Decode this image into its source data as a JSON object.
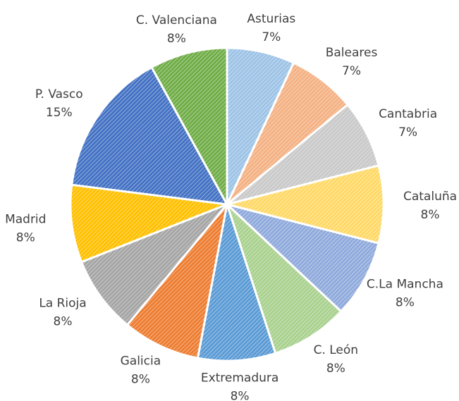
{
  "chart_data": {
    "type": "pie",
    "categories": [
      "Asturias",
      "Baleares",
      "Cantabria",
      "Cataluña",
      "C.La Mancha",
      "C. León",
      "Extremadura",
      "Galicia",
      "La Rioja",
      "Madrid",
      "P. Vasco",
      "C. Valenciana"
    ],
    "values": [
      7,
      7,
      7,
      8,
      8,
      8,
      8,
      8,
      8,
      8,
      15,
      8
    ],
    "value_labels": [
      "7%",
      "7%",
      "7%",
      "8%",
      "8%",
      "8%",
      "8%",
      "8%",
      "8%",
      "8%",
      "15%",
      "8%"
    ],
    "colors": [
      "#9dc3e6",
      "#f4b183",
      "#c9c9c9",
      "#ffd966",
      "#8faadc",
      "#a9d18e",
      "#5b9bd5",
      "#ed7d31",
      "#a5a5a5",
      "#ffc000",
      "#4472c4",
      "#70ad47"
    ]
  }
}
